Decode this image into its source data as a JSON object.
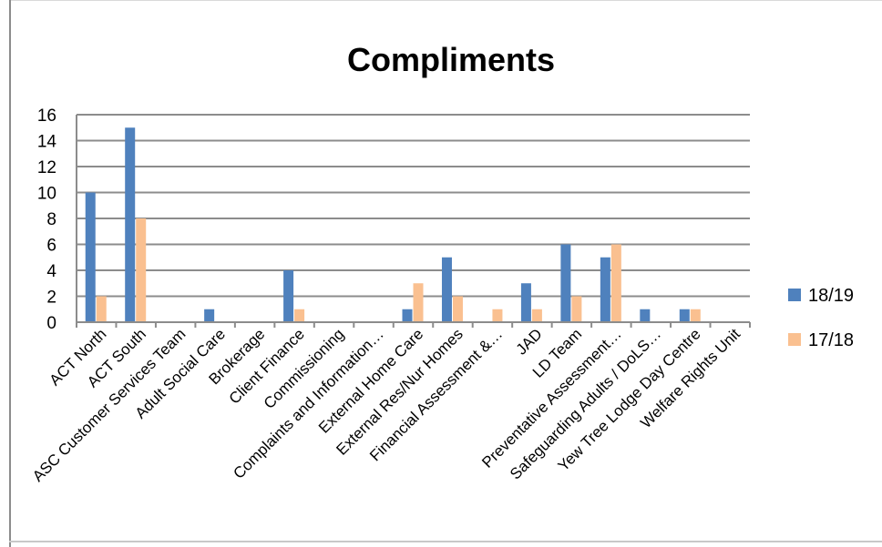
{
  "chart_data": {
    "type": "bar",
    "title": "Compliments",
    "xlabel": "",
    "ylabel": "",
    "ylim": [
      0,
      16
    ],
    "yticks": [
      0,
      2,
      4,
      6,
      8,
      10,
      12,
      14,
      16
    ],
    "grid": true,
    "legend": "right",
    "categories": [
      "ACT North",
      "ACT South",
      "ASC Customer Services Team",
      "Adult Social Care",
      "Brokerage",
      "Client Finance",
      "Commissioning",
      "Complaints and Information…",
      "External Home Care",
      "External Res/Nur Homes",
      "Financial Assessment &…",
      "JAD",
      "LD Team",
      "Preventative Assessment…",
      "Safeguarding Adults / DoLS…",
      "Yew Tree Lodge Day Centre",
      "Welfare Rights Unit"
    ],
    "series": [
      {
        "name": "18/19",
        "color": "#4F81BD",
        "values": [
          10,
          15,
          0,
          1,
          0,
          4,
          0,
          0,
          1,
          5,
          0,
          3,
          6,
          5,
          1,
          1,
          0
        ]
      },
      {
        "name": "17/18",
        "color": "#FAC090",
        "values": [
          2,
          8,
          0,
          0,
          0,
          1,
          0,
          0,
          3,
          2,
          1,
          1,
          2,
          6,
          0,
          1,
          0
        ]
      }
    ]
  }
}
